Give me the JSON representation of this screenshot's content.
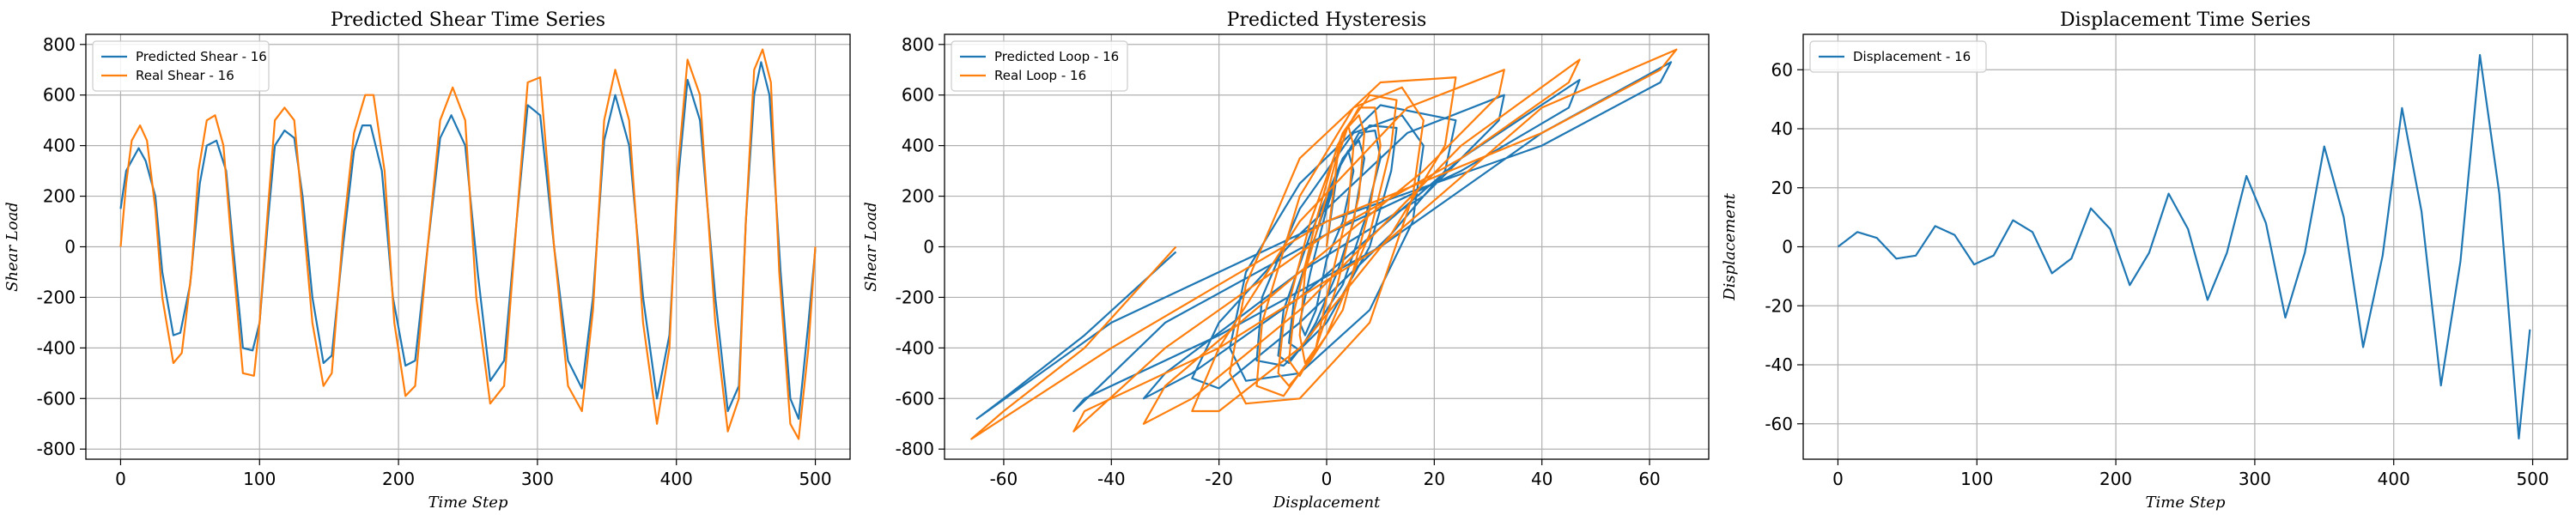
{
  "colors": {
    "predicted": "#1f77b4",
    "real": "#ff7f0e",
    "grid": "#b0b0b0"
  },
  "chart_data": [
    {
      "type": "line",
      "title": "Predicted Shear Time Series",
      "xlabel": "Time Step",
      "ylabel": "Shear Load",
      "xlim": [
        -25,
        525
      ],
      "ylim": [
        -840,
        840
      ],
      "xticks": [
        0,
        100,
        200,
        300,
        400,
        500
      ],
      "yticks": [
        -800,
        -600,
        -400,
        -200,
        0,
        200,
        400,
        600,
        800
      ],
      "grid": true,
      "legend": "top-left",
      "series": [
        {
          "name": "Predicted Shear - 16",
          "color": "#1f77b4",
          "x": [
            0,
            4,
            8,
            13,
            18,
            25,
            30,
            38,
            43,
            50,
            57,
            62,
            69,
            76,
            81,
            88,
            95,
            100,
            106,
            111,
            118,
            125,
            131,
            138,
            146,
            152,
            160,
            168,
            174,
            180,
            188,
            196,
            205,
            212,
            221,
            230,
            238,
            248,
            257,
            266,
            276,
            285,
            293,
            302,
            312,
            322,
            332,
            340,
            348,
            356,
            366,
            376,
            386,
            395,
            401,
            408,
            417,
            428,
            437,
            445,
            450,
            456,
            461,
            467,
            475,
            482,
            488,
            495,
            500
          ],
          "y": [
            150,
            300,
            340,
            390,
            340,
            200,
            -100,
            -350,
            -340,
            -150,
            250,
            400,
            420,
            300,
            0,
            -400,
            -410,
            -300,
            100,
            400,
            460,
            430,
            200,
            -200,
            -460,
            -430,
            0,
            380,
            480,
            480,
            300,
            -200,
            -470,
            -450,
            0,
            430,
            520,
            400,
            -100,
            -530,
            -450,
            100,
            560,
            520,
            0,
            -450,
            -560,
            -200,
            420,
            600,
            400,
            -200,
            -600,
            -350,
            250,
            660,
            500,
            -200,
            -650,
            -550,
            100,
            600,
            730,
            600,
            -100,
            -600,
            -680,
            -300,
            -10
          ]
        },
        {
          "name": "Real Shear - 16",
          "color": "#ff7f0e",
          "x": [
            0,
            4,
            8,
            14,
            19,
            25,
            30,
            38,
            44,
            51,
            56,
            62,
            68,
            74,
            80,
            88,
            96,
            100,
            106,
            111,
            118,
            125,
            130,
            138,
            146,
            152,
            160,
            168,
            176,
            182,
            190,
            197,
            205,
            212,
            221,
            230,
            239,
            248,
            256,
            266,
            276,
            285,
            293,
            302,
            312,
            322,
            332,
            340,
            348,
            356,
            366,
            376,
            386,
            395,
            401,
            408,
            417,
            428,
            437,
            445,
            450,
            456,
            462,
            468,
            474,
            482,
            488,
            495,
            500
          ],
          "y": [
            0,
            250,
            420,
            480,
            420,
            150,
            -200,
            -460,
            -420,
            -100,
            300,
            500,
            520,
            400,
            0,
            -500,
            -510,
            -300,
            150,
            500,
            550,
            500,
            200,
            -300,
            -550,
            -500,
            50,
            450,
            600,
            600,
            300,
            -300,
            -590,
            -550,
            0,
            500,
            630,
            500,
            -200,
            -620,
            -550,
            100,
            650,
            670,
            0,
            -550,
            -650,
            -250,
            500,
            700,
            500,
            -300,
            -700,
            -400,
            300,
            740,
            600,
            -300,
            -730,
            -600,
            100,
            700,
            780,
            650,
            -100,
            -700,
            -760,
            -400,
            0
          ]
        }
      ]
    },
    {
      "type": "line",
      "title": "Predicted Hysteresis",
      "xlabel": "Displacement",
      "ylabel": "Shear Load",
      "xlim": [
        -71,
        71
      ],
      "ylim": [
        -840,
        840
      ],
      "xticks": [
        -60,
        -40,
        -20,
        0,
        20,
        40,
        60
      ],
      "yticks": [
        -800,
        -600,
        -400,
        -200,
        0,
        200,
        400,
        600,
        800
      ],
      "grid": true,
      "legend": "top-left",
      "series": [
        {
          "name": "Predicted Loop - 16",
          "color": "#1f77b4",
          "x": [
            0,
            2,
            4,
            5,
            3,
            0,
            -2,
            -4,
            -5,
            -3,
            0,
            3,
            6,
            7,
            5,
            2,
            -2,
            -5,
            -7,
            -6,
            -2,
            2,
            6,
            9,
            10,
            7,
            3,
            -3,
            -7,
            -9,
            -8,
            -3,
            3,
            8,
            13,
            12,
            8,
            0,
            -8,
            -13,
            -12,
            -5,
            5,
            14,
            18,
            16,
            8,
            -5,
            -15,
            -18,
            -15,
            -5,
            10,
            24,
            22,
            12,
            -5,
            -20,
            -25,
            -20,
            -5,
            15,
            33,
            32,
            18,
            -5,
            -30,
            -34,
            -25,
            -5,
            25,
            47,
            45,
            25,
            0,
            -30,
            -47,
            -45,
            -20,
            10,
            40,
            64,
            62,
            40,
            0,
            -40,
            -65,
            -60,
            -45,
            -28
          ],
          "y": [
            0,
            300,
            380,
            300,
            100,
            -50,
            -250,
            -350,
            -300,
            -100,
            150,
            350,
            420,
            350,
            100,
            -100,
            -300,
            -410,
            -380,
            -200,
            50,
            300,
            450,
            460,
            350,
            100,
            -150,
            -350,
            -460,
            -430,
            -250,
            50,
            350,
            480,
            470,
            300,
            0,
            -300,
            -470,
            -450,
            -200,
            150,
            450,
            520,
            400,
            100,
            -250,
            -500,
            -530,
            -400,
            -100,
            250,
            560,
            500,
            300,
            50,
            -300,
            -560,
            -520,
            -300,
            50,
            450,
            600,
            500,
            200,
            -100,
            -500,
            -600,
            -500,
            -200,
            350,
            660,
            550,
            300,
            50,
            -300,
            -650,
            -600,
            -350,
            0,
            450,
            730,
            650,
            400,
            100,
            -300,
            -680,
            -600,
            -350,
            -20
          ]
        },
        {
          "name": "Real Loop - 16",
          "color": "#ff7f0e",
          "x": [
            0,
            2,
            4,
            5,
            4,
            0,
            -2,
            -4,
            -5,
            -4,
            0,
            3,
            6,
            7,
            6,
            2,
            -2,
            -5,
            -7,
            -6,
            -2,
            2,
            6,
            9,
            10,
            8,
            3,
            -3,
            -7,
            -9,
            -8,
            -3,
            3,
            8,
            13,
            12,
            8,
            0,
            -8,
            -13,
            -12,
            -5,
            5,
            14,
            18,
            16,
            8,
            -5,
            -15,
            -18,
            -15,
            -5,
            10,
            24,
            22,
            12,
            -5,
            -20,
            -25,
            -20,
            -5,
            15,
            33,
            32,
            18,
            -5,
            -30,
            -34,
            -25,
            -5,
            25,
            47,
            45,
            25,
            0,
            -30,
            -47,
            -45,
            -20,
            10,
            40,
            65,
            62,
            40,
            0,
            -40,
            -66,
            -60,
            -45,
            -28
          ],
          "y": [
            0,
            350,
            480,
            400,
            150,
            -200,
            -400,
            -460,
            -350,
            -100,
            200,
            450,
            520,
            450,
            200,
            -150,
            -400,
            -510,
            -450,
            -250,
            100,
            400,
            550,
            550,
            400,
            150,
            -250,
            -450,
            -550,
            -500,
            -300,
            100,
            450,
            600,
            580,
            400,
            50,
            -350,
            -590,
            -550,
            -300,
            200,
            550,
            630,
            500,
            200,
            -300,
            -600,
            -620,
            -500,
            -150,
            350,
            650,
            670,
            400,
            50,
            -400,
            -650,
            -650,
            -400,
            100,
            550,
            700,
            600,
            300,
            -100,
            -550,
            -700,
            -600,
            -250,
            400,
            740,
            650,
            350,
            50,
            -400,
            -730,
            -650,
            -400,
            0,
            550,
            780,
            700,
            450,
            100,
            -400,
            -760,
            -650,
            -400,
            0
          ]
        }
      ]
    },
    {
      "type": "line",
      "title": "Displacement Time Series",
      "xlabel": "Time Step",
      "ylabel": "Displacement",
      "xlim": [
        -25,
        525
      ],
      "ylim": [
        -72,
        72
      ],
      "xticks": [
        0,
        100,
        200,
        300,
        400,
        500
      ],
      "yticks": [
        -60,
        -40,
        -20,
        0,
        20,
        40,
        60
      ],
      "grid": true,
      "legend": "top-left",
      "series": [
        {
          "name": "Displacement - 16",
          "color": "#1f77b4",
          "x": [
            0,
            14,
            28,
            42,
            56,
            70,
            84,
            98,
            112,
            126,
            140,
            154,
            168,
            182,
            196,
            210,
            224,
            238,
            252,
            266,
            280,
            294,
            308,
            322,
            336,
            350,
            364,
            378,
            392,
            406,
            420,
            434,
            448,
            462,
            476,
            490,
            498
          ],
          "y": [
            0,
            5,
            3,
            -4,
            -3,
            7,
            4,
            -6,
            -3,
            9,
            5,
            -9,
            -4,
            13,
            6,
            -13,
            -2,
            18,
            6,
            -18,
            -2,
            24,
            8,
            -24,
            -2,
            34,
            10,
            -34,
            -3,
            47,
            12,
            -47,
            -5,
            65,
            18,
            -65,
            -28
          ]
        }
      ]
    }
  ]
}
